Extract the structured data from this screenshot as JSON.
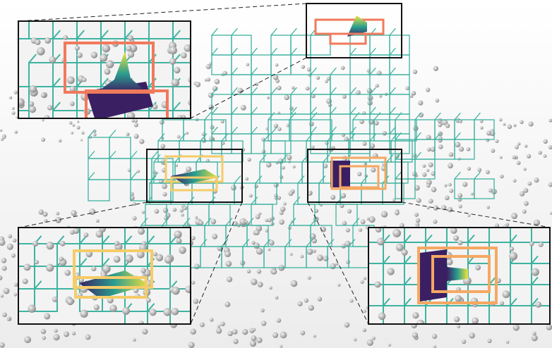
{
  "figure": {
    "description_free": true,
    "colors": {
      "grid": "#3fb3a1",
      "points": "#b8b8b8",
      "cell_top": "#f07a5c",
      "cell_left": "#f5cc6a",
      "cell_right": "#f5a862",
      "field_low": "#3b1f63",
      "field_mid": "#2a9d8f",
      "field_high": "#f2e33a"
    },
    "insets": [
      {
        "id": "top",
        "color_key": "cell_top"
      },
      {
        "id": "left",
        "color_key": "cell_left"
      },
      {
        "id": "right",
        "color_key": "cell_right"
      }
    ]
  }
}
